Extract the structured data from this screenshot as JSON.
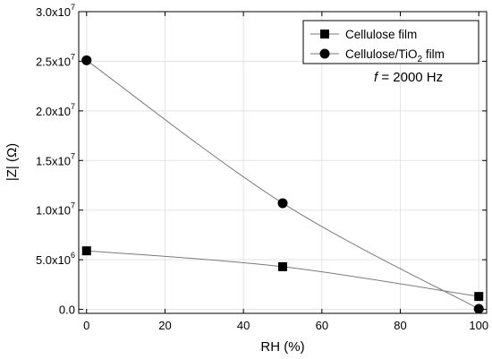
{
  "chart_data": {
    "type": "line",
    "xlabel": "RH (%)",
    "ylabel": "|Z| (Ω)",
    "xlim": [
      -2,
      102
    ],
    "ylim": [
      -400000,
      30000000
    ],
    "grid": true,
    "legend_position": "top-right",
    "x_ticks": [
      "0",
      "20",
      "40",
      "60",
      "80",
      "100"
    ],
    "x_tick_values": [
      0,
      20,
      40,
      60,
      80,
      100
    ],
    "y_tick_values": [
      0,
      5000000,
      10000000,
      15000000,
      20000000,
      25000000,
      30000000
    ],
    "y_tick_labels": [
      {
        "mant": "0.0",
        "exp": ""
      },
      {
        "mant": "5.0x10",
        "exp": "6"
      },
      {
        "mant": "1.0x10",
        "exp": "7"
      },
      {
        "mant": "1.5x10",
        "exp": "7"
      },
      {
        "mant": "2.0x10",
        "exp": "7"
      },
      {
        "mant": "2.5x10",
        "exp": "7"
      },
      {
        "mant": "3.0x10",
        "exp": "7"
      }
    ],
    "series": [
      {
        "name": "Cellulose film",
        "name_parts": [
          "Cellulose film"
        ],
        "marker": "square",
        "x": [
          0,
          50,
          100
        ],
        "y": [
          5900000,
          4300000,
          1300000
        ]
      },
      {
        "name": "Cellulose/TiO2 film",
        "name_parts": [
          "Cellulose/TiO",
          "2",
          " film"
        ],
        "marker": "circle",
        "x": [
          0,
          50,
          100
        ],
        "y": [
          25100000,
          10700000,
          50000
        ]
      }
    ],
    "annotation": {
      "italic": "f",
      "rest": " = 2000 Hz"
    }
  }
}
